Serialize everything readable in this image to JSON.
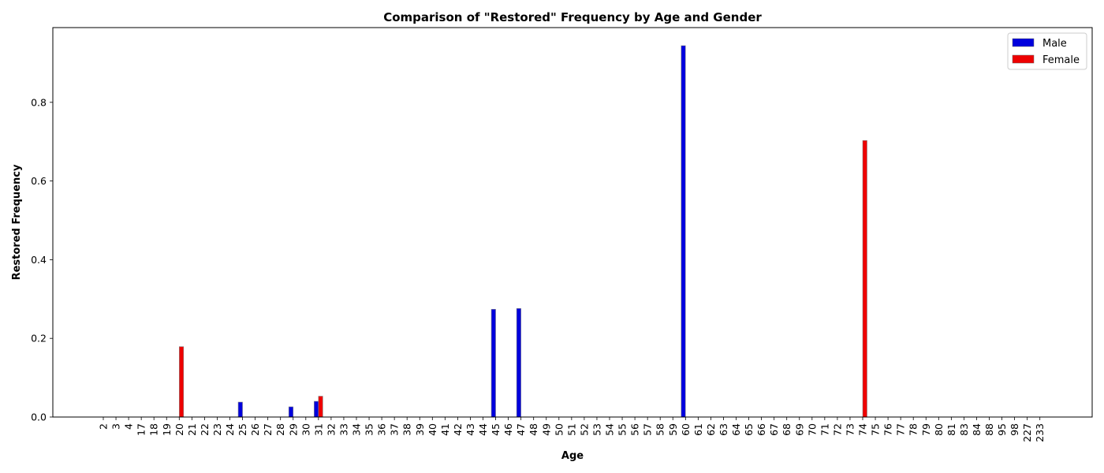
{
  "chart_data": {
    "type": "bar",
    "title": "Comparison of \"Restored\" Frequency by Age and Gender",
    "xlabel": "Age",
    "ylabel": "Restored Frequency",
    "ylim": [
      0,
      0.99
    ],
    "yticks": [
      "0.0",
      "0.2",
      "0.4",
      "0.6",
      "0.8"
    ],
    "yticks_values": [
      0,
      0.2,
      0.4,
      0.6,
      0.8
    ],
    "grid": false,
    "legend_position": "top-right",
    "categories": [
      "2",
      "3",
      "4",
      "17",
      "18",
      "19",
      "20",
      "21",
      "22",
      "23",
      "24",
      "25",
      "26",
      "27",
      "28",
      "29",
      "30",
      "31",
      "32",
      "33",
      "34",
      "35",
      "36",
      "37",
      "38",
      "39",
      "40",
      "41",
      "42",
      "43",
      "44",
      "45",
      "46",
      "47",
      "48",
      "49",
      "50",
      "51",
      "52",
      "53",
      "54",
      "55",
      "56",
      "57",
      "58",
      "59",
      "60",
      "61",
      "62",
      "63",
      "64",
      "65",
      "66",
      "67",
      "68",
      "69",
      "70",
      "71",
      "72",
      "73",
      "74",
      "75",
      "76",
      "77",
      "78",
      "79",
      "80",
      "81",
      "83",
      "84",
      "88",
      "95",
      "98",
      "227",
      "233"
    ],
    "series": [
      {
        "name": "Male",
        "color": "#0000dd",
        "values": [
          0,
          0,
          0,
          0,
          0,
          0,
          0,
          0,
          0,
          0,
          0,
          0.038,
          0,
          0,
          0,
          0.026,
          0,
          0.04,
          0,
          0,
          0,
          0,
          0,
          0,
          0,
          0,
          0,
          0,
          0,
          0,
          0,
          0.274,
          0,
          0.276,
          0,
          0,
          0,
          0,
          0,
          0,
          0,
          0,
          0,
          0,
          0,
          0,
          0.944,
          0,
          0,
          0,
          0,
          0,
          0,
          0,
          0,
          0,
          0,
          0,
          0,
          0,
          0,
          0,
          0,
          0,
          0,
          0,
          0,
          0,
          0,
          0,
          0,
          0,
          0,
          0,
          0
        ]
      },
      {
        "name": "Female",
        "color": "#ee0000",
        "values": [
          0,
          0,
          0,
          0,
          0,
          0,
          0.179,
          0,
          0,
          0,
          0,
          0,
          0,
          0,
          0,
          0,
          0,
          0.053,
          0,
          0,
          0,
          0,
          0,
          0,
          0,
          0,
          0,
          0,
          0,
          0,
          0,
          0,
          0,
          0,
          0,
          0,
          0,
          0,
          0,
          0,
          0,
          0,
          0,
          0,
          0,
          0,
          0,
          0,
          0,
          0,
          0,
          0,
          0,
          0,
          0,
          0,
          0,
          0,
          0,
          0,
          0.703,
          0,
          0,
          0,
          0,
          0,
          0,
          0,
          0,
          0,
          0,
          0,
          0,
          0,
          0
        ]
      }
    ]
  }
}
